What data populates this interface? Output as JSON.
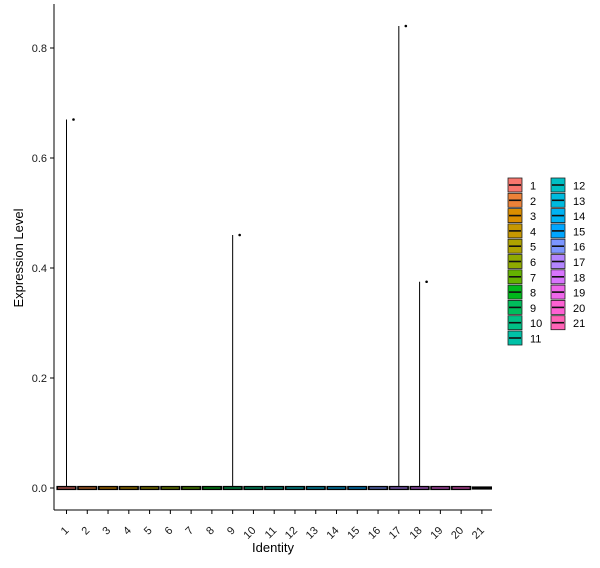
{
  "chart_data": {
    "type": "violin",
    "xlabel": "Identity",
    "ylabel": "Expression Level",
    "ylim": [
      -0.04,
      0.88
    ],
    "yticks": [
      0.0,
      0.2,
      0.4,
      0.6,
      0.8
    ],
    "ytick_labels": [
      "0.0",
      "0.2",
      "0.4",
      "0.6",
      "0.8"
    ],
    "categories": [
      "1",
      "2",
      "3",
      "4",
      "5",
      "6",
      "7",
      "8",
      "9",
      "10",
      "11",
      "12",
      "13",
      "14",
      "15",
      "16",
      "17",
      "18",
      "19",
      "20",
      "21"
    ],
    "max_values": [
      0.67,
      0,
      0,
      0,
      0,
      0,
      0,
      0,
      0.46,
      0,
      0,
      0,
      0,
      0,
      0,
      0,
      0.84,
      0.375,
      0,
      0,
      0
    ],
    "outliers": [
      {
        "category": "1",
        "y": 0.67
      },
      {
        "category": "9",
        "y": 0.46
      },
      {
        "category": "17",
        "y": 0.84
      },
      {
        "category": "18",
        "y": 0.375
      }
    ],
    "grid": false,
    "legend": {
      "placement": "right",
      "columns": 2,
      "entries": [
        {
          "label": "1",
          "color": "#F8766D"
        },
        {
          "label": "2",
          "color": "#EC8239"
        },
        {
          "label": "3",
          "color": "#DB8E00"
        },
        {
          "label": "4",
          "color": "#C79800"
        },
        {
          "label": "5",
          "color": "#AEA200"
        },
        {
          "label": "6",
          "color": "#8FAA00"
        },
        {
          "label": "7",
          "color": "#64B200"
        },
        {
          "label": "8",
          "color": "#00B81B"
        },
        {
          "label": "9",
          "color": "#00BD5C"
        },
        {
          "label": "10",
          "color": "#00C085"
        },
        {
          "label": "11",
          "color": "#00C1A7"
        },
        {
          "label": "12",
          "color": "#00BFC4"
        },
        {
          "label": "13",
          "color": "#00BADE"
        },
        {
          "label": "14",
          "color": "#00B2F3"
        },
        {
          "label": "15",
          "color": "#00A6FF"
        },
        {
          "label": "16",
          "color": "#7C96FF"
        },
        {
          "label": "17",
          "color": "#B385FF"
        },
        {
          "label": "18",
          "color": "#D874FD"
        },
        {
          "label": "19",
          "color": "#EF67EB"
        },
        {
          "label": "20",
          "color": "#FD61D3"
        },
        {
          "label": "21",
          "color": "#FF63B6"
        }
      ]
    }
  }
}
